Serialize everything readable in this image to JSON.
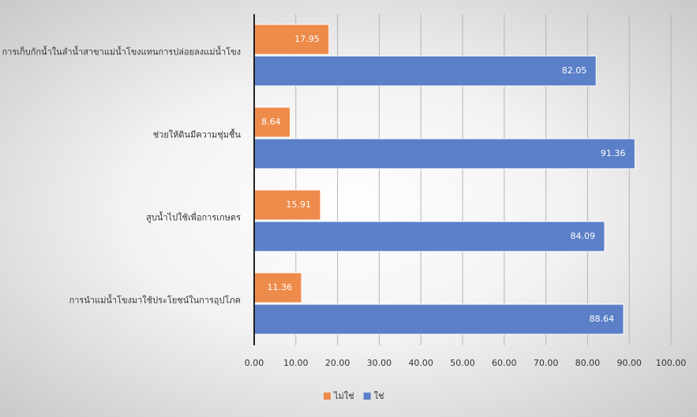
{
  "chart_data": {
    "type": "hbar",
    "categories": [
      "การเก็บกักน้ำในลำน้ำสาขาแม่น้ำโขงแทนการปล่อยลงแม่น้ำโขง",
      "ช่วยให้ดินมีความชุ่มชื้น",
      "สูบน้ำไปใช้เพื่อการเกษตร",
      "การนำแม่น้ำโขงมาใช้ประโยชน์ในการอุปโภค"
    ],
    "series": [
      {
        "name": "ไม่ใช่",
        "color": "#ed8b4a",
        "values": [
          17.95,
          8.64,
          15.91,
          11.36
        ]
      },
      {
        "name": "ใช่",
        "color": "#5b80c8",
        "values": [
          82.05,
          91.36,
          84.09,
          88.64
        ]
      }
    ],
    "xlim": [
      0,
      100
    ],
    "xticks": [
      {
        "value": 0,
        "label": "0.00"
      },
      {
        "value": 10,
        "label": "10.00"
      },
      {
        "value": 20,
        "label": "20.00"
      },
      {
        "value": 30,
        "label": "30.00"
      },
      {
        "value": 40,
        "label": "40.00"
      },
      {
        "value": 50,
        "label": "50.00"
      },
      {
        "value": 60,
        "label": "60.00"
      },
      {
        "value": 70,
        "label": "70.00"
      },
      {
        "value": 80,
        "label": "80.00"
      },
      {
        "value": 90,
        "label": "90.00"
      },
      {
        "value": 100,
        "label": "100.00"
      }
    ],
    "grid": true,
    "legend": "bottom"
  }
}
